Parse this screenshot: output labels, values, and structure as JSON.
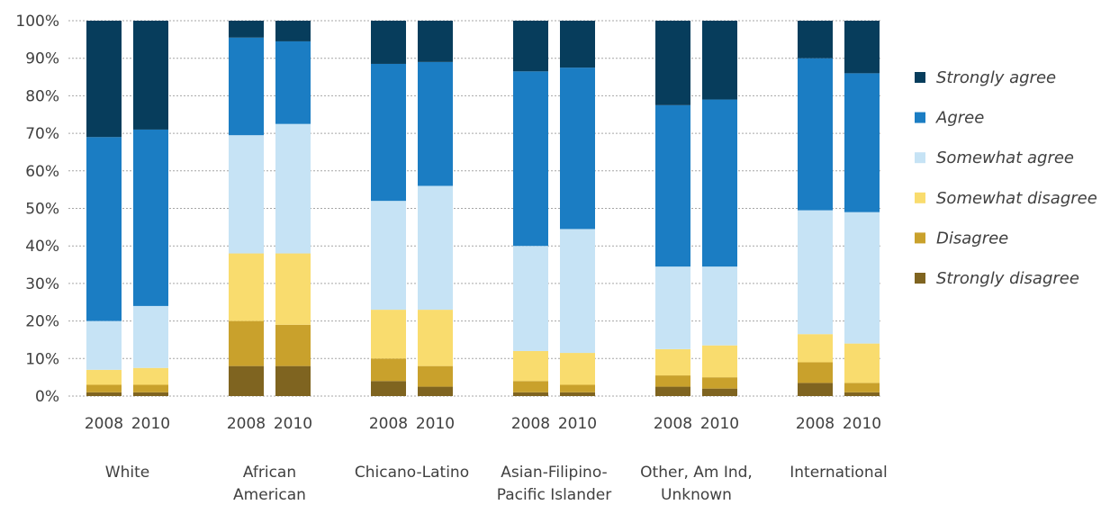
{
  "chart_data": {
    "type": "bar",
    "stacked": true,
    "percent": true,
    "title": "",
    "xlabel": "",
    "ylabel": "",
    "ylim": [
      0,
      100
    ],
    "yticks": [
      "0%",
      "10%",
      "20%",
      "30%",
      "40%",
      "50%",
      "60%",
      "70%",
      "80%",
      "90%",
      "100%"
    ],
    "grid": true,
    "legend_position": "right",
    "groups": [
      {
        "label_lines": [
          "White"
        ]
      },
      {
        "label_lines": [
          "African",
          "American"
        ]
      },
      {
        "label_lines": [
          "Chicano-Latino"
        ]
      },
      {
        "label_lines": [
          "Asian-Filipino-",
          "Pacific Islander"
        ]
      },
      {
        "label_lines": [
          "Other, Am Ind,",
          "Unknown"
        ]
      },
      {
        "label_lines": [
          "International"
        ]
      }
    ],
    "years": [
      "2008",
      "2010"
    ],
    "series": [
      {
        "name": "Strongly disagree",
        "color": "#7f6420",
        "values": [
          [
            1.0,
            1.0
          ],
          [
            8.0,
            8.0
          ],
          [
            4.0,
            2.5
          ],
          [
            1.0,
            1.0
          ],
          [
            2.5,
            2.0
          ],
          [
            3.5,
            1.0
          ]
        ]
      },
      {
        "name": "Disagree",
        "color": "#c9a12c",
        "values": [
          [
            2.0,
            2.0
          ],
          [
            12.0,
            11.0
          ],
          [
            6.0,
            5.5
          ],
          [
            3.0,
            2.0
          ],
          [
            3.0,
            3.0
          ],
          [
            5.5,
            2.5
          ]
        ]
      },
      {
        "name": "Somewhat disagree",
        "color": "#f9dc6e",
        "values": [
          [
            4.0,
            4.5
          ],
          [
            18.0,
            19.0
          ],
          [
            13.0,
            15.0
          ],
          [
            8.0,
            8.5
          ],
          [
            7.0,
            8.5
          ],
          [
            7.5,
            10.5
          ]
        ]
      },
      {
        "name": "Somewhat agree",
        "color": "#c6e3f5",
        "values": [
          [
            13.0,
            16.5
          ],
          [
            31.5,
            34.5
          ],
          [
            29.0,
            33.0
          ],
          [
            28.0,
            33.0
          ],
          [
            22.0,
            21.0
          ],
          [
            33.0,
            35.0
          ]
        ]
      },
      {
        "name": "Agree",
        "color": "#1b7dc3",
        "values": [
          [
            49.0,
            47.0
          ],
          [
            26.0,
            22.0
          ],
          [
            36.5,
            33.0
          ],
          [
            46.5,
            43.0
          ],
          [
            43.0,
            44.5
          ],
          [
            40.5,
            37.0
          ]
        ]
      },
      {
        "name": "Strongly agree",
        "color": "#073d5c",
        "values": [
          [
            31.0,
            29.0
          ],
          [
            4.5,
            5.5
          ],
          [
            11.5,
            11.0
          ],
          [
            13.5,
            12.5
          ],
          [
            22.5,
            21.0
          ],
          [
            10.0,
            14.0
          ]
        ]
      }
    ]
  }
}
